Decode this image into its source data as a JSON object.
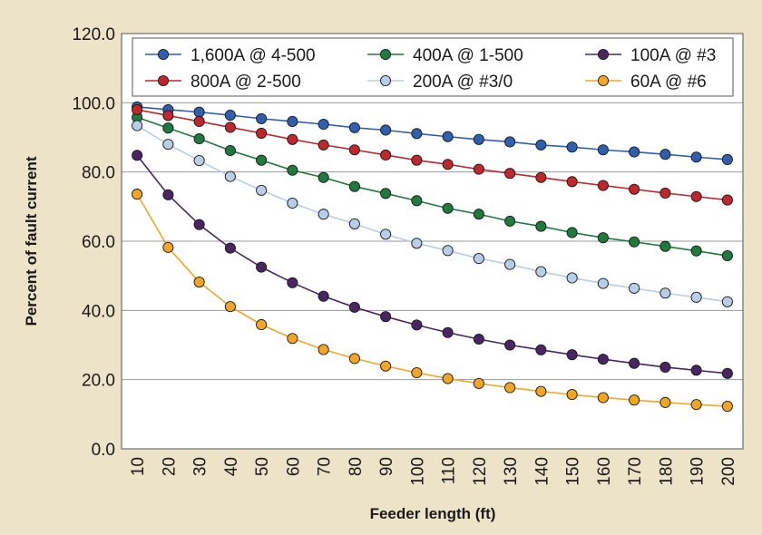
{
  "chart_data": {
    "type": "line",
    "title": "",
    "xlabel": "Feeder length (ft)",
    "ylabel": "Percent of fault current",
    "ylim": [
      0,
      120
    ],
    "yticks": [
      "0.0",
      "20.0",
      "40.0",
      "60.0",
      "80.0",
      "100.0",
      "120.0"
    ],
    "grid": true,
    "legend_position": "top",
    "x": [
      10,
      20,
      30,
      40,
      50,
      60,
      70,
      80,
      90,
      100,
      110,
      120,
      130,
      140,
      150,
      160,
      170,
      180,
      190,
      200
    ],
    "series": [
      {
        "name": "1,600A @ 4-500",
        "color": "#2f5fae",
        "values": [
          98.8,
          98.0,
          97.3,
          96.4,
          95.4,
          94.6,
          93.8,
          92.8,
          92.1,
          91.1,
          90.2,
          89.4,
          88.7,
          87.8,
          87.2,
          86.4,
          85.8,
          85.1,
          84.3,
          83.6
        ]
      },
      {
        "name": "400A @ 1-500",
        "color": "#1e7a3e",
        "values": [
          95.8,
          92.7,
          89.6,
          86.2,
          83.4,
          80.5,
          78.4,
          75.8,
          73.8,
          71.7,
          69.5,
          67.8,
          65.8,
          64.3,
          62.5,
          61.0,
          59.8,
          58.5,
          57.2,
          55.8
        ]
      },
      {
        "name": "100A @ #3",
        "color": "#4a2563",
        "values": [
          84.8,
          73.4,
          64.8,
          58.0,
          52.5,
          48.0,
          44.1,
          40.9,
          38.2,
          35.8,
          33.6,
          31.7,
          30.0,
          28.6,
          27.2,
          25.9,
          24.7,
          23.6,
          22.7,
          21.8
        ]
      },
      {
        "name": "800A @ 2-500",
        "color": "#c0272d",
        "values": [
          98.0,
          96.3,
          94.6,
          92.9,
          91.2,
          89.4,
          87.8,
          86.4,
          84.9,
          83.4,
          82.2,
          80.8,
          79.6,
          78.4,
          77.2,
          76.1,
          75.0,
          73.9,
          72.9,
          71.9
        ]
      },
      {
        "name": "200A @ #3/0",
        "color": "#b8cde8",
        "values": [
          93.4,
          88.0,
          83.3,
          78.7,
          74.7,
          71.0,
          67.8,
          65.0,
          62.0,
          59.4,
          57.3,
          55.0,
          53.3,
          51.2,
          49.4,
          47.8,
          46.4,
          45.0,
          43.8,
          42.5
        ]
      },
      {
        "name": "60A @ #6",
        "color": "#f3a623",
        "values": [
          73.6,
          58.2,
          48.2,
          41.1,
          35.9,
          31.9,
          28.7,
          26.1,
          23.9,
          22.0,
          20.3,
          18.9,
          17.7,
          16.6,
          15.7,
          14.8,
          14.1,
          13.4,
          12.8,
          12.3
        ]
      }
    ]
  }
}
